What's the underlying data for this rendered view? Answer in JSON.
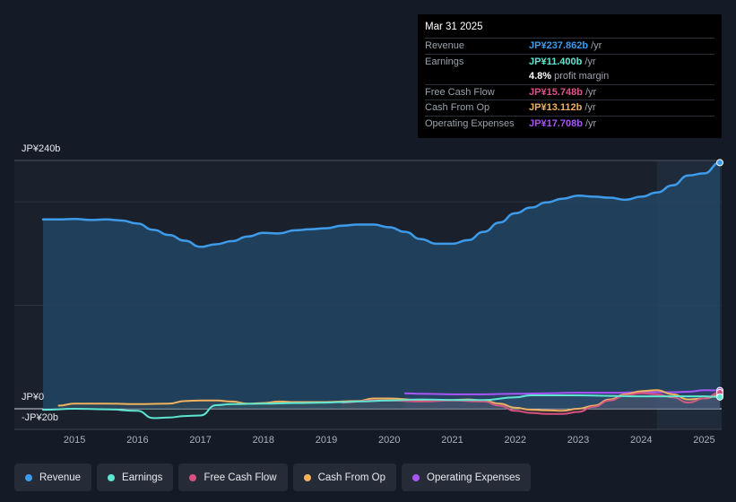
{
  "tooltip": {
    "date": "Mar 31 2025",
    "rows": [
      {
        "label": "Revenue",
        "value": "JP¥237.862b",
        "unit": "/yr",
        "color": "#3d9be9"
      },
      {
        "label": "Earnings",
        "value": "JP¥11.400b",
        "unit": "/yr",
        "color": "#5ee6d3"
      },
      {
        "label": "",
        "value": "4.8%",
        "unit": "profit margin",
        "color": "#ffffff"
      },
      {
        "label": "Free Cash Flow",
        "value": "JP¥15.748b",
        "unit": "/yr",
        "color": "#e0508a"
      },
      {
        "label": "Cash From Op",
        "value": "JP¥13.112b",
        "unit": "/yr",
        "color": "#f0b25c"
      },
      {
        "label": "Operating Expenses",
        "value": "JP¥17.708b",
        "unit": "/yr",
        "color": "#a855f7"
      }
    ]
  },
  "legend": [
    {
      "label": "Revenue",
      "color": "#3d9be9"
    },
    {
      "label": "Earnings",
      "color": "#5ee6d3"
    },
    {
      "label": "Free Cash Flow",
      "color": "#d8507f"
    },
    {
      "label": "Cash From Op",
      "color": "#f0b25c"
    },
    {
      "label": "Operating Expenses",
      "color": "#a855f7"
    }
  ],
  "chart_data": {
    "type": "line",
    "y_top_label": "JP¥240b",
    "y_zero_label": "JP¥0",
    "y_min_label": "-JP¥20b",
    "ylim": [
      -20,
      240
    ],
    "xlim": [
      2014.5,
      2025.25
    ],
    "x_ticks": [
      "2015",
      "2016",
      "2017",
      "2018",
      "2019",
      "2020",
      "2021",
      "2022",
      "2023",
      "2024",
      "2025"
    ],
    "highlight_from": 2024.25,
    "series": [
      {
        "name": "Revenue",
        "color": "#3d9be9",
        "area": true,
        "points": [
          [
            2014.5,
            183
          ],
          [
            2014.75,
            183
          ],
          [
            2015.0,
            183.5
          ],
          [
            2015.25,
            182.5
          ],
          [
            2015.5,
            183
          ],
          [
            2015.75,
            182
          ],
          [
            2016.0,
            179
          ],
          [
            2016.25,
            173
          ],
          [
            2016.5,
            168
          ],
          [
            2016.75,
            162.5
          ],
          [
            2017.0,
            156.5
          ],
          [
            2017.25,
            159
          ],
          [
            2017.5,
            162
          ],
          [
            2017.75,
            166.5
          ],
          [
            2018.0,
            170
          ],
          [
            2018.25,
            169.5
          ],
          [
            2018.5,
            172.5
          ],
          [
            2018.75,
            173.5
          ],
          [
            2019.0,
            174.5
          ],
          [
            2019.25,
            177
          ],
          [
            2019.5,
            178
          ],
          [
            2019.75,
            178
          ],
          [
            2020.0,
            175.5
          ],
          [
            2020.25,
            171
          ],
          [
            2020.5,
            164
          ],
          [
            2020.75,
            159.5
          ],
          [
            2021.0,
            159.5
          ],
          [
            2021.25,
            163
          ],
          [
            2021.5,
            171
          ],
          [
            2021.75,
            180
          ],
          [
            2022.0,
            189
          ],
          [
            2022.25,
            194.5
          ],
          [
            2022.5,
            199.5
          ],
          [
            2022.75,
            203
          ],
          [
            2023.0,
            206
          ],
          [
            2023.25,
            205
          ],
          [
            2023.5,
            204
          ],
          [
            2023.75,
            202
          ],
          [
            2024.0,
            205
          ],
          [
            2024.25,
            209
          ],
          [
            2024.5,
            216
          ],
          [
            2024.75,
            225.5
          ],
          [
            2025.0,
            227.5
          ],
          [
            2025.25,
            237.9
          ]
        ]
      },
      {
        "name": "Earnings",
        "color": "#5ee6d3",
        "area": false,
        "points": [
          [
            2014.5,
            -1
          ],
          [
            2015.0,
            0
          ],
          [
            2015.5,
            -0.5
          ],
          [
            2016.0,
            -2
          ],
          [
            2016.25,
            -9
          ],
          [
            2016.5,
            -8.5
          ],
          [
            2016.75,
            -7
          ],
          [
            2017.0,
            -6.5
          ],
          [
            2017.25,
            3.5
          ],
          [
            2017.5,
            4.5
          ],
          [
            2018.0,
            5
          ],
          [
            2018.5,
            5.5
          ],
          [
            2019.0,
            6
          ],
          [
            2019.25,
            6.5
          ],
          [
            2019.5,
            7
          ],
          [
            2020.0,
            8
          ],
          [
            2020.5,
            9
          ],
          [
            2021.0,
            8.5
          ],
          [
            2021.5,
            8.5
          ],
          [
            2022.0,
            11
          ],
          [
            2022.25,
            13
          ],
          [
            2022.5,
            13
          ],
          [
            2023.0,
            13
          ],
          [
            2023.5,
            12.5
          ],
          [
            2024.0,
            12
          ],
          [
            2024.5,
            12
          ],
          [
            2025.0,
            12
          ],
          [
            2025.25,
            11.4
          ]
        ]
      },
      {
        "name": "Free Cash Flow",
        "color": "#d8507f",
        "area": false,
        "points": [
          [
            2019.25,
            6
          ],
          [
            2019.75,
            8
          ],
          [
            2020.0,
            8
          ],
          [
            2020.5,
            7
          ],
          [
            2021.0,
            8
          ],
          [
            2021.5,
            7
          ],
          [
            2021.75,
            3
          ],
          [
            2022.0,
            -2
          ],
          [
            2022.25,
            -4
          ],
          [
            2022.5,
            -5
          ],
          [
            2022.75,
            -5
          ],
          [
            2023.0,
            -3
          ],
          [
            2023.25,
            2
          ],
          [
            2023.5,
            8
          ],
          [
            2023.75,
            13
          ],
          [
            2024.0,
            15
          ],
          [
            2024.25,
            14
          ],
          [
            2024.5,
            11
          ],
          [
            2024.75,
            6
          ],
          [
            2025.0,
            10
          ],
          [
            2025.25,
            15.7
          ]
        ]
      },
      {
        "name": "Cash From Op",
        "color": "#f0b25c",
        "area": false,
        "points": [
          [
            2014.75,
            3
          ],
          [
            2015.0,
            5
          ],
          [
            2015.5,
            5
          ],
          [
            2016.0,
            4.5
          ],
          [
            2016.5,
            5
          ],
          [
            2016.75,
            7.5
          ],
          [
            2017.0,
            8
          ],
          [
            2017.25,
            8
          ],
          [
            2017.5,
            7
          ],
          [
            2017.75,
            5
          ],
          [
            2018.0,
            5.5
          ],
          [
            2018.25,
            7
          ],
          [
            2018.5,
            6.5
          ],
          [
            2019.0,
            6.5
          ],
          [
            2019.5,
            7.5
          ],
          [
            2019.75,
            10
          ],
          [
            2020.0,
            10
          ],
          [
            2020.5,
            8.5
          ],
          [
            2021.0,
            8.5
          ],
          [
            2021.25,
            9
          ],
          [
            2021.5,
            8
          ],
          [
            2021.75,
            5
          ],
          [
            2022.0,
            1
          ],
          [
            2022.25,
            -1
          ],
          [
            2022.5,
            -1.5
          ],
          [
            2022.75,
            -2
          ],
          [
            2023.0,
            0
          ],
          [
            2023.25,
            3
          ],
          [
            2023.5,
            9
          ],
          [
            2023.75,
            14
          ],
          [
            2024.0,
            17
          ],
          [
            2024.25,
            18
          ],
          [
            2024.5,
            14
          ],
          [
            2024.75,
            9
          ],
          [
            2025.0,
            10
          ],
          [
            2025.25,
            13.1
          ]
        ]
      },
      {
        "name": "Operating Expenses",
        "color": "#a855f7",
        "area": false,
        "points": [
          [
            2020.25,
            15
          ],
          [
            2020.5,
            14.5
          ],
          [
            2021.0,
            14
          ],
          [
            2021.5,
            14
          ],
          [
            2022.0,
            14.5
          ],
          [
            2022.5,
            15
          ],
          [
            2023.0,
            15.5
          ],
          [
            2023.5,
            15.5
          ],
          [
            2024.0,
            16
          ],
          [
            2024.5,
            16
          ],
          [
            2024.75,
            16.5
          ],
          [
            2025.0,
            18
          ],
          [
            2025.25,
            17.7
          ]
        ]
      }
    ]
  }
}
